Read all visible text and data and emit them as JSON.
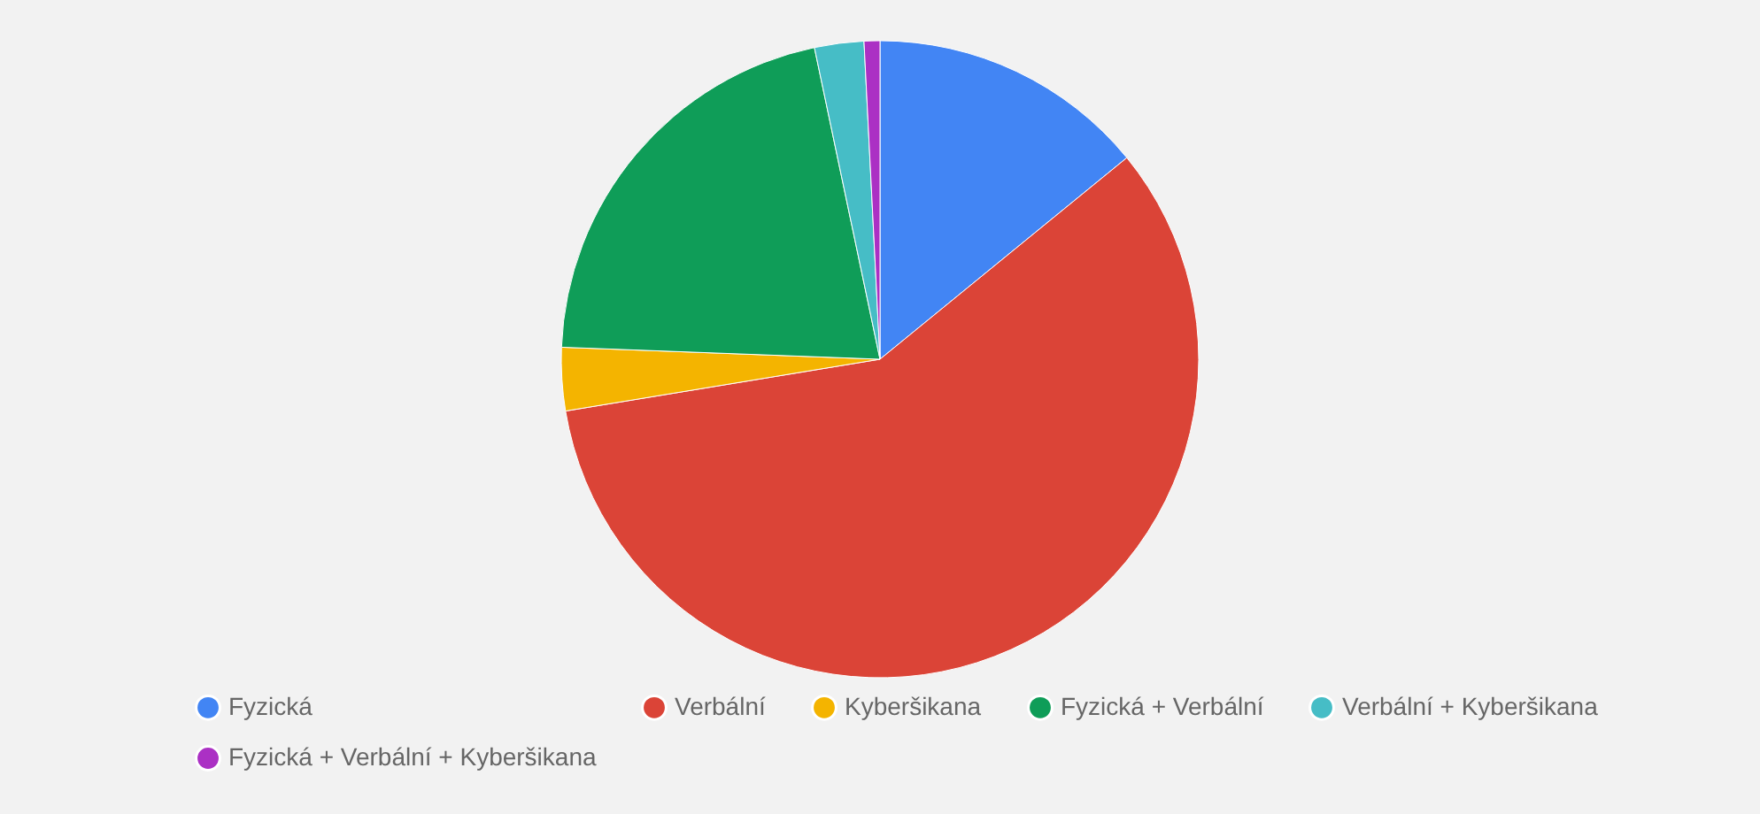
{
  "chart_data": {
    "type": "pie",
    "categories": [
      "Fyzická",
      "Verbální",
      "Kyberšikana",
      "Fyzická + Verbální",
      "Verbální + Kyberšikana",
      "Fyzická + Verbální + Kyberšikana"
    ],
    "values": [
      14.1,
      58.3,
      3.2,
      21.1,
      2.5,
      0.8
    ],
    "colors": [
      "#4285f4",
      "#db4437",
      "#f4b400",
      "#0f9d58",
      "#46bdc6",
      "#ab30c4"
    ],
    "legend": "bottom"
  }
}
